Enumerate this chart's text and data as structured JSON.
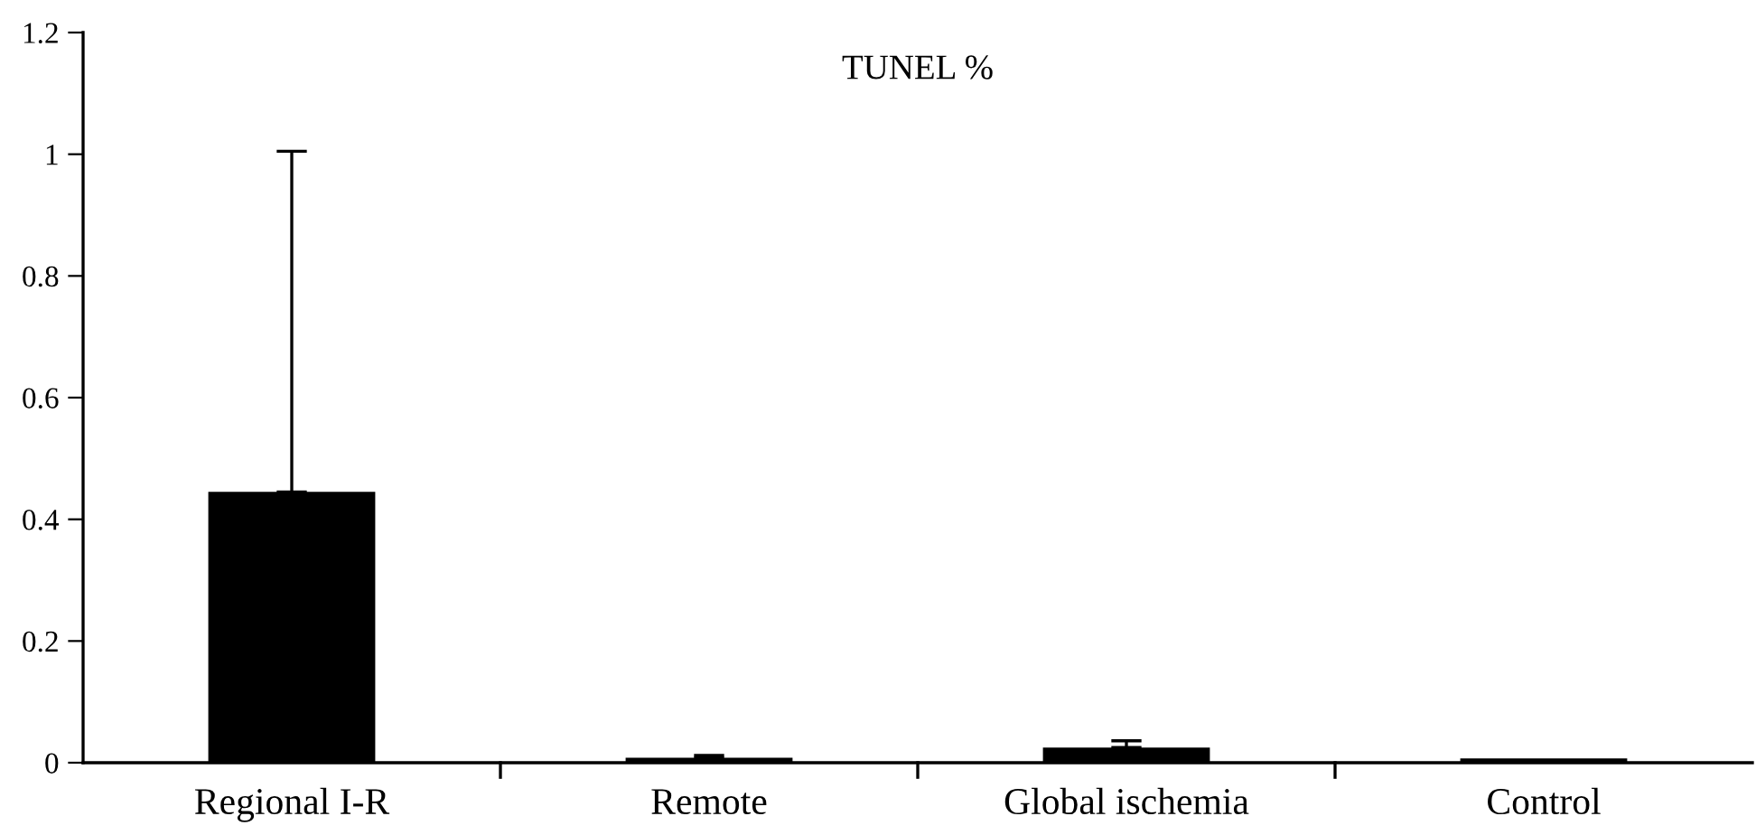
{
  "chart_data": {
    "type": "bar",
    "title": "TUNEL %",
    "categories": [
      "Regional I-R",
      "Remote",
      "Global ischemia",
      "Control"
    ],
    "values": [
      0.445,
      0.008,
      0.025,
      0.007
    ],
    "errors": [
      [
        0.445,
        1.005
      ],
      [
        0.008,
        0.012
      ],
      [
        0.025,
        0.036
      ],
      null
    ],
    "color": "#000000",
    "ylim": [
      0,
      1.2
    ],
    "yticks": [
      0,
      0.2,
      0.4,
      0.6,
      0.8,
      1,
      1.2
    ],
    "grid": false
  }
}
